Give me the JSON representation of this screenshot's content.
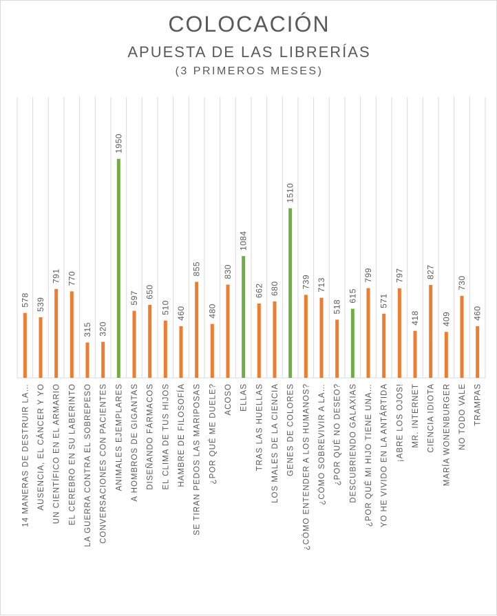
{
  "chart_data": {
    "type": "bar",
    "title": "COLOCACIÓN",
    "subtitle": "APUESTA DE LAS LIBRERÍAS",
    "subtitle2": "(3 PRIMEROS MESES)",
    "xlabel": "",
    "ylabel": "",
    "ylim": [
      0,
      2500
    ],
    "grid": true,
    "legend": "none",
    "colors": {
      "default": "#ed7d31",
      "highlight": "#70ad47",
      "grid": "#d9d9d9",
      "label": "#595959"
    },
    "categories": [
      "14 MANERAS DE DESTRUIR LA…",
      "AUSENCIA, EL CÁNCER Y YO",
      "UN CIENTÍFICO EN EL ARMARIO",
      "EL CEREBRO EN SU LABERINTO",
      "LA GUERRA CONTRA EL SOBREPESO",
      "CONVERSACIONES CON PACIENTES",
      "ANIMALES EJEMPLARES",
      "A HOMBROS DE GIGANTAS",
      "DISEÑANDO FÁRMACOS",
      "EL CLIMA DE TUS HIJOS",
      "HAMBRE DE FILOSOFÍA",
      "SE TIRAN PEDOS LAS MARIPOSAS",
      "¿POR QUÉ ME DUELE?",
      "ACOSO",
      "ELLAS",
      "TRAS LAS HUELLAS",
      "LOS MALES DE LA CIENCIA",
      "GENES DE COLORES",
      "¿CÓMO ENTENDER A LOS HUMANOS?",
      "¿CÓMO SOBREVIVIR A LA…",
      "¿POR QUÉ NO DESEO?",
      "DESCUBRIENDO GALAXIAS",
      "¿POR QUÉ MI HIJO TIENE UNA…",
      "YO HE VIVIDO EN LA ANTÁRTIDA",
      "¡ABRE LOS OJOS!",
      "MR. INTERNET",
      "CIENCIA IDIOTA",
      "MARÍA WONENBURGER",
      "NO TODO VALE",
      "TRAMPAS"
    ],
    "values": [
      578,
      539,
      791,
      770,
      315,
      320,
      1950,
      597,
      650,
      510,
      460,
      855,
      480,
      830,
      1084,
      662,
      680,
      1510,
      739,
      713,
      518,
      615,
      799,
      571,
      797,
      418,
      827,
      409,
      730,
      460
    ],
    "highlighted": [
      "ANIMALES EJEMPLARES",
      "ELLAS",
      "GENES DE COLORES",
      "DESCUBRIENDO GALAXIAS"
    ]
  }
}
